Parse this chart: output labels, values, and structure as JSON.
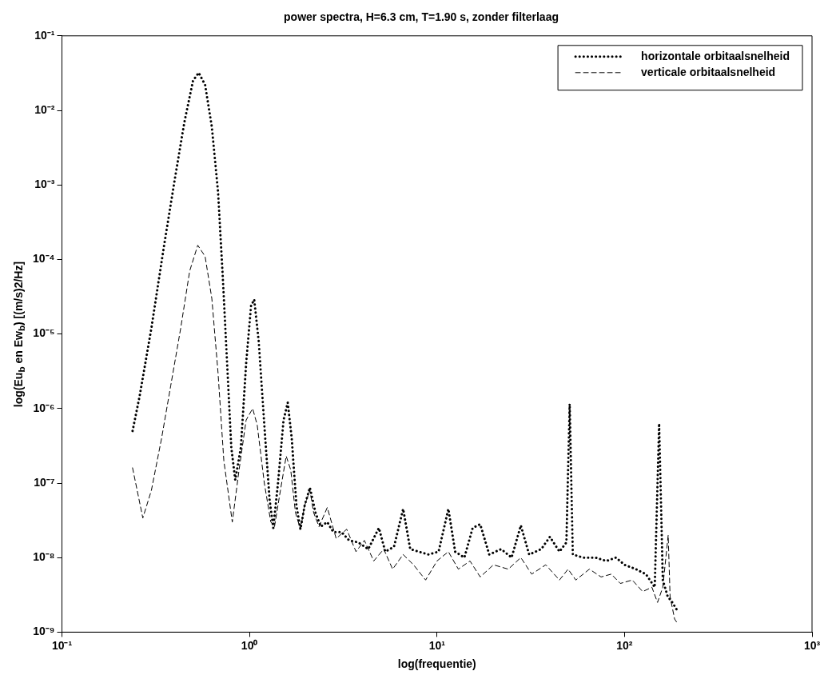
{
  "chart_data": {
    "type": "line",
    "title": "power spectra, H=6.3 cm, T=1.90 s, zonder filterlaag",
    "xlabel": "log(frequentie)",
    "ylabel": "log(Eu$_{b}$ en Ew$_{b}$) [(m/s)2/Hz]",
    "log": "xy",
    "grid": false,
    "legend": "top right",
    "marker": "none",
    "xlim": [
      0.1,
      1000
    ],
    "xticks": [
      {
        "value": 0.1,
        "label": "10⁻¹"
      },
      {
        "value": 1,
        "label": "10⁰"
      },
      {
        "value": 10,
        "label": "10¹"
      },
      {
        "value": 100,
        "label": "10²"
      },
      {
        "value": 1000,
        "label": "10³"
      }
    ],
    "ylim": [
      1e-09,
      0.1
    ],
    "yticks": [
      {
        "value": 1e-09,
        "label": "10⁻⁹"
      },
      {
        "value": 1e-08,
        "label": "10⁻⁸"
      },
      {
        "value": 1e-07,
        "label": "10⁻⁷"
      },
      {
        "value": 1e-06,
        "label": "10⁻⁶"
      },
      {
        "value": 1e-05,
        "label": "10⁻⁵"
      },
      {
        "value": 0.0001,
        "label": "10⁻⁴"
      },
      {
        "value": 0.001,
        "label": "10⁻³"
      },
      {
        "value": 0.01,
        "label": "10⁻²"
      },
      {
        "value": 0.1,
        "label": "10⁻¹"
      }
    ],
    "series": [
      {
        "name": "horizontale orbitaalsnelheid",
        "color": "#000000",
        "line_style": "dotted",
        "x": [
          0.238,
          0.26,
          0.3,
          0.35,
          0.4,
          0.45,
          0.5,
          0.536,
          0.58,
          0.63,
          0.68,
          0.72,
          0.76,
          0.8,
          0.84,
          0.9,
          0.96,
          1.02,
          1.06,
          1.12,
          1.2,
          1.28,
          1.34,
          1.42,
          1.52,
          1.6,
          1.68,
          1.78,
          1.87,
          1.97,
          2.1,
          2.25,
          2.4,
          2.6,
          2.8,
          3.1,
          3.4,
          3.8,
          4.3,
          4.9,
          5.3,
          5.9,
          6.6,
          7.2,
          8,
          9,
          10.2,
          11.5,
          12.5,
          14,
          15.5,
          17,
          19,
          22,
          25,
          28,
          31,
          36,
          40,
          45,
          49,
          51,
          53,
          60,
          70,
          80,
          90,
          100,
          115,
          130,
          145,
          153,
          160,
          170,
          180,
          190
        ],
        "values": [
          5e-07,
          1.5e-06,
          1.2e-05,
          0.00015,
          0.0012,
          0.007,
          0.025,
          0.032,
          0.022,
          0.006,
          0.0008,
          6e-05,
          4e-06,
          3e-07,
          1.1e-07,
          3e-07,
          4e-06,
          2.4e-05,
          2.9e-05,
          8e-06,
          6e-07,
          6e-08,
          2.5e-08,
          1e-07,
          7e-07,
          1.2e-06,
          4e-07,
          5e-08,
          2.4e-08,
          5e-08,
          8.7e-08,
          4e-08,
          2.6e-08,
          3e-08,
          2.2e-08,
          2.2e-08,
          1.7e-08,
          1.6e-08,
          1.3e-08,
          2.5e-08,
          1.2e-08,
          1.4e-08,
          4.5e-08,
          1.3e-08,
          1.2e-08,
          1.1e-08,
          1.2e-08,
          4.5e-08,
          1.2e-08,
          1e-08,
          2.5e-08,
          2.8e-08,
          1.1e-08,
          1.3e-08,
          1e-08,
          2.7e-08,
          1.1e-08,
          1.3e-08,
          1.9e-08,
          1.2e-08,
          1.6e-08,
          1.15e-06,
          1.1e-08,
          1e-08,
          1e-08,
          9e-09,
          1e-08,
          8e-09,
          7e-09,
          6e-09,
          4e-09,
          6.3e-07,
          5e-09,
          3e-09,
          2.5e-09,
          2e-09
        ]
      },
      {
        "name": "verticale orbitaalsnelheid",
        "color": "#000000",
        "line_style": "dashed",
        "x": [
          0.238,
          0.27,
          0.3,
          0.34,
          0.38,
          0.43,
          0.48,
          0.53,
          0.58,
          0.63,
          0.68,
          0.73,
          0.81,
          0.88,
          0.96,
          1.04,
          1.1,
          1.2,
          1.3,
          1.36,
          1.45,
          1.57,
          1.66,
          1.76,
          1.87,
          1.97,
          2.1,
          2.2,
          2.35,
          2.6,
          2.9,
          3.3,
          3.7,
          4.1,
          4.6,
          5.2,
          5.8,
          6.6,
          7.5,
          8.7,
          10,
          11.5,
          13,
          15,
          17,
          20,
          24,
          28,
          32,
          38,
          45,
          50,
          55,
          65,
          75,
          85,
          95,
          110,
          125,
          140,
          150,
          160,
          171,
          175,
          185,
          192
        ],
        "values": [
          1.6e-07,
          3.4e-08,
          8e-08,
          4e-07,
          2e-06,
          1.2e-05,
          7e-05,
          0.000155,
          0.00011,
          3e-05,
          3e-06,
          2e-07,
          3e-08,
          1.5e-07,
          7e-07,
          1e-06,
          6e-07,
          1e-07,
          3e-08,
          2.6e-08,
          7e-08,
          2.3e-07,
          1.5e-07,
          4e-08,
          2.4e-08,
          5e-08,
          8e-08,
          4e-08,
          2.6e-08,
          4.7e-08,
          1.8e-08,
          2.4e-08,
          1.2e-08,
          1.7e-08,
          9e-09,
          1.3e-08,
          7e-09,
          1.1e-08,
          8e-09,
          5e-09,
          9e-09,
          1.2e-08,
          7e-09,
          9e-09,
          5.5e-09,
          8e-09,
          7e-09,
          1e-08,
          6e-09,
          8e-09,
          5e-09,
          7e-09,
          5e-09,
          7e-09,
          5.5e-09,
          6e-09,
          4.5e-09,
          5e-09,
          3.5e-09,
          4e-09,
          2.5e-09,
          4e-09,
          2e-08,
          3e-09,
          1.5e-09,
          1.3e-09
        ]
      }
    ]
  }
}
